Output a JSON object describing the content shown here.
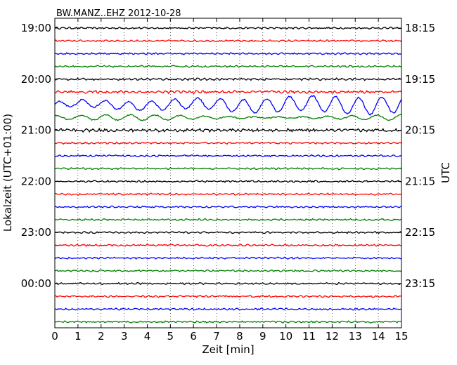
{
  "chart_data": {
    "type": "line",
    "title": "BW.MANZ..EHZ 2012-10-28",
    "xlabel": "Zeit  [min]",
    "ylabel_left": "Lokalzeit (UTC+01:00)",
    "ylabel_right": "UTC",
    "xlim": [
      0,
      15
    ],
    "x_ticks": [
      "0",
      "1",
      "2",
      "3",
      "4",
      "5",
      "6",
      "7",
      "8",
      "9",
      "10",
      "11",
      "12",
      "13",
      "14",
      "15"
    ],
    "y_ticks_left": [
      "19:00",
      "20:00",
      "21:00",
      "22:00",
      "23:00",
      "00:00"
    ],
    "y_ticks_right": [
      "18:15",
      "19:15",
      "20:15",
      "21:15",
      "22:15",
      "23:15"
    ],
    "grid_x": true,
    "trace_minutes": 15,
    "trace_colors": [
      "#000000",
      "#ff0000",
      "#0000ff",
      "#008000"
    ],
    "traces": [
      {
        "start": "19:00",
        "color": "#000000",
        "amplitude": 0.9
      },
      {
        "start": "19:15",
        "color": "#ff0000",
        "amplitude": 0.9
      },
      {
        "start": "19:30",
        "color": "#0000ff",
        "amplitude": 0.9
      },
      {
        "start": "19:45",
        "color": "#008000",
        "amplitude": 0.9
      },
      {
        "start": "20:00",
        "color": "#000000",
        "amplitude": 1.1
      },
      {
        "start": "20:15",
        "color": "#ff0000",
        "amplitude": 1.4
      },
      {
        "start": "20:30",
        "color": "#0000ff",
        "amplitude": 12
      },
      {
        "start": "20:45",
        "color": "#008000",
        "amplitude": 4
      },
      {
        "start": "21:00",
        "color": "#000000",
        "amplitude": 1.6
      },
      {
        "start": "21:15",
        "color": "#ff0000",
        "amplitude": 0.9
      },
      {
        "start": "21:30",
        "color": "#0000ff",
        "amplitude": 0.9
      },
      {
        "start": "21:45",
        "color": "#008000",
        "amplitude": 0.9
      },
      {
        "start": "22:00",
        "color": "#000000",
        "amplitude": 0.9
      },
      {
        "start": "22:15",
        "color": "#ff0000",
        "amplitude": 0.9
      },
      {
        "start": "22:30",
        "color": "#0000ff",
        "amplitude": 0.9
      },
      {
        "start": "22:45",
        "color": "#008000",
        "amplitude": 0.9
      },
      {
        "start": "23:00",
        "color": "#000000",
        "amplitude": 0.9
      },
      {
        "start": "23:15",
        "color": "#ff0000",
        "amplitude": 0.9
      },
      {
        "start": "23:30",
        "color": "#0000ff",
        "amplitude": 0.9
      },
      {
        "start": "23:45",
        "color": "#008000",
        "amplitude": 0.9
      },
      {
        "start": "00:00",
        "color": "#000000",
        "amplitude": 0.9
      },
      {
        "start": "00:15",
        "color": "#ff0000",
        "amplitude": 0.9
      },
      {
        "start": "00:30",
        "color": "#0000ff",
        "amplitude": 0.9
      },
      {
        "start": "00:45",
        "color": "#008000",
        "amplitude": 0.9
      }
    ]
  }
}
